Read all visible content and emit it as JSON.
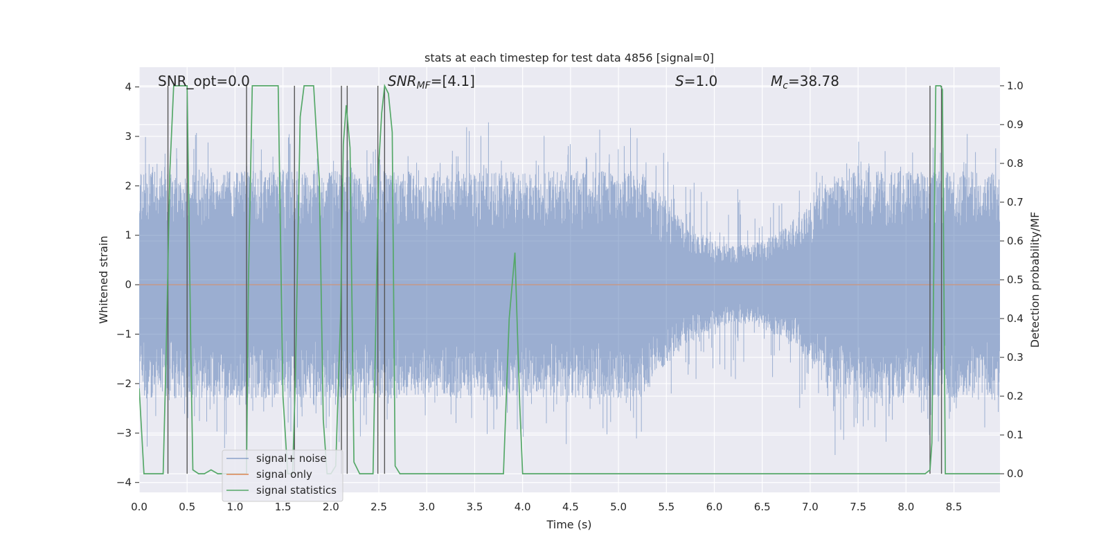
{
  "chart_data": {
    "type": "line",
    "title": "stats at each timestep for test data 4856 [signal=0]",
    "xlabel": "Time (s)",
    "ylabel": "Whitened strain",
    "y2label": "Detection probability/MF",
    "xlim": [
      0.0,
      8.98
    ],
    "ylim": [
      -4.2,
      4.4
    ],
    "y2lim": [
      -0.048,
      1.048
    ],
    "x_ticks": [
      "0.0",
      "0.5",
      "1.0",
      "1.5",
      "2.0",
      "2.5",
      "3.0",
      "3.5",
      "4.0",
      "4.5",
      "5.0",
      "5.5",
      "6.0",
      "6.5",
      "7.0",
      "7.5",
      "8.0",
      "8.5"
    ],
    "y_ticks": [
      "4",
      "3",
      "2",
      "1",
      "0",
      "−1",
      "−2",
      "−3",
      "−4"
    ],
    "y2_ticks": [
      "1.0",
      "0.9",
      "0.8",
      "0.7",
      "0.6",
      "0.5",
      "0.4",
      "0.3",
      "0.2",
      "0.1",
      "0.0"
    ],
    "annotations": {
      "snr_opt": "SNR_opt=0.0",
      "snr_mf_sym": "SNR",
      "snr_mf_sub": "MF",
      "snr_mf_val": "=[4.1]",
      "s_sym": "S",
      "s_val": "=1.0",
      "mc_sym": "M",
      "mc_sub": "c",
      "mc_val": "=38.78"
    },
    "legend": {
      "placement": "lower-left",
      "entries": [
        "signal+ noise",
        "signal only",
        "signal statistics"
      ]
    },
    "series": [
      {
        "name": "signal+ noise",
        "kind": "noise-envelope",
        "color": "#4c72b0",
        "typical_amplitude": 2.0,
        "max_positive": 3.6,
        "max_negative": -3.6
      },
      {
        "name": "signal only",
        "color": "#dd8452",
        "values": "zero"
      },
      {
        "name": "signal statistics",
        "color": "#55a868",
        "x": [
          0.0,
          0.05,
          0.1,
          0.18,
          0.25,
          0.28,
          0.32,
          0.36,
          0.4,
          0.45,
          0.5,
          0.54,
          0.56,
          0.62,
          0.68,
          0.75,
          0.82,
          0.88,
          0.95,
          1.02,
          1.08,
          1.12,
          1.14,
          1.18,
          1.25,
          1.35,
          1.45,
          1.5,
          1.55,
          1.6,
          1.63,
          1.68,
          1.72,
          1.76,
          1.82,
          1.88,
          1.92,
          1.96,
          2.0,
          2.05,
          2.1,
          2.13,
          2.16,
          2.2,
          2.24,
          2.3,
          2.38,
          2.44,
          2.5,
          2.53,
          2.56,
          2.6,
          2.64,
          2.67,
          2.72,
          2.8,
          3.0,
          3.3,
          3.6,
          3.8,
          3.86,
          3.92,
          3.97,
          4.0,
          4.2,
          5.0,
          6.0,
          7.0,
          7.3,
          8.0,
          8.2,
          8.25,
          8.27,
          8.31,
          8.36,
          8.38,
          8.41,
          8.5,
          8.98
        ],
        "y": [
          0.22,
          0.0,
          0.0,
          0.0,
          0.0,
          0.3,
          0.78,
          1.0,
          1.0,
          1.0,
          1.0,
          0.3,
          0.01,
          0.0,
          0.0,
          0.01,
          0.0,
          0.0,
          0.0,
          0.0,
          0.0,
          0.0,
          0.5,
          1.0,
          1.0,
          1.0,
          1.0,
          0.2,
          0.0,
          0.0,
          0.25,
          0.92,
          1.0,
          1.0,
          1.0,
          0.75,
          0.14,
          0.0,
          0.0,
          0.02,
          0.4,
          0.85,
          0.95,
          0.84,
          0.03,
          0.0,
          0.0,
          0.0,
          0.8,
          0.93,
          1.0,
          0.98,
          0.88,
          0.02,
          0.0,
          0.0,
          0.0,
          0.0,
          0.0,
          0.0,
          0.4,
          0.57,
          0.18,
          0.0,
          0.0,
          0.0,
          0.0,
          0.0,
          0.0,
          0.0,
          0.0,
          0.01,
          0.08,
          1.0,
          1.0,
          0.99,
          0.0,
          0.0,
          0.0
        ]
      }
    ],
    "vertical_lines_x": [
      0.3,
      0.5,
      1.12,
      1.62,
      2.11,
      2.17,
      2.49,
      2.56,
      8.25,
      8.37
    ]
  }
}
